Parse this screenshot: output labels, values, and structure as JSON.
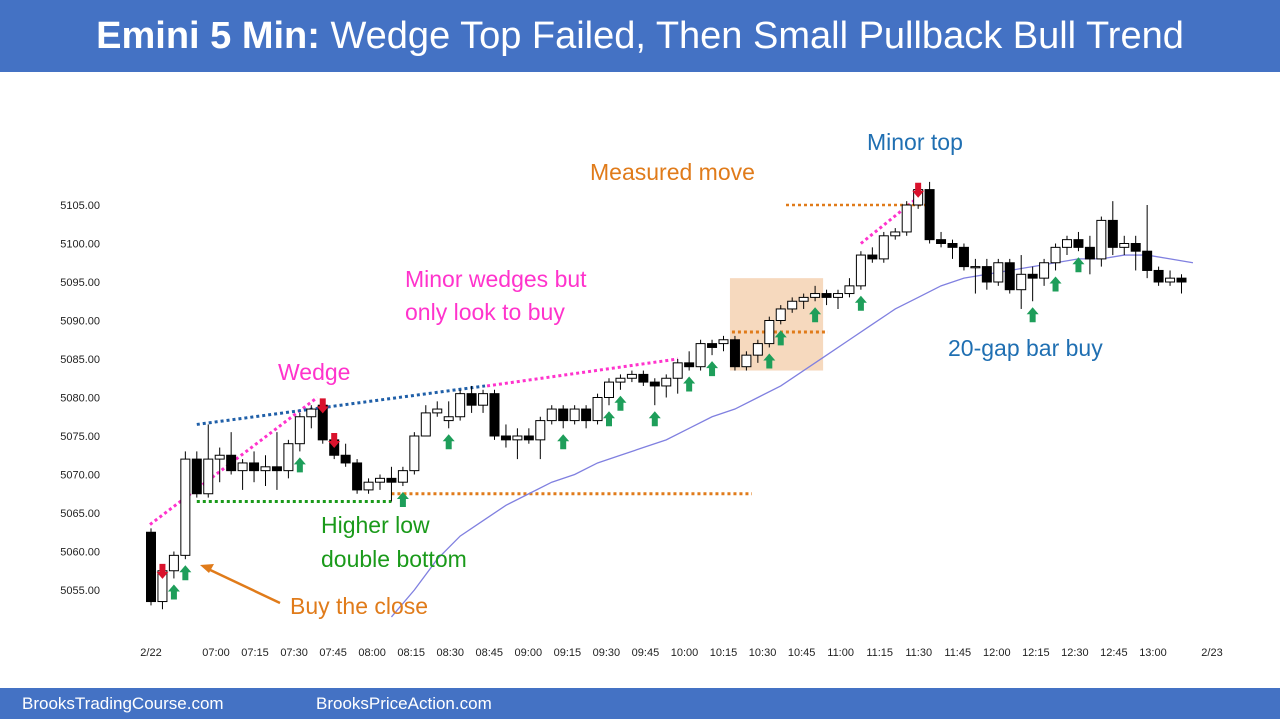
{
  "header": {
    "title_prefix": "Emini 5 Min:",
    "title_rest": "Wedge Top Failed, Then Small Pullback Bull Trend"
  },
  "footer": {
    "left": "BrooksTradingCourse.com",
    "right": "BrooksPriceAction.com"
  },
  "colors": {
    "banner": "#4472c4",
    "bull_body": "#ffffff",
    "bear_body": "#000000",
    "ema": "#8080e0",
    "buy_arrow": "#1e9e5a",
    "sell_arrow": "#d9122c",
    "magenta": "#ff33cc",
    "blue_text": "#1f6fb2",
    "orange": "#e07b1a",
    "green_text": "#1a9a1a",
    "box": "#f5d2b3"
  },
  "chart_data": {
    "type": "candlestick",
    "title": "",
    "ylim": [
      5051,
      5110
    ],
    "yticks": [
      "5055.00",
      "5060.00",
      "5065.00",
      "5070.00",
      "5075.00",
      "5080.00",
      "5085.00",
      "5090.00",
      "5095.00",
      "5100.00",
      "5105.00"
    ],
    "xticks": [
      "2/22",
      "07:00",
      "07:15",
      "07:30",
      "07:45",
      "08:00",
      "08:15",
      "08:30",
      "08:45",
      "09:00",
      "09:15",
      "09:30",
      "09:45",
      "10:00",
      "10:15",
      "10:30",
      "10:45",
      "11:00",
      "11:15",
      "11:30",
      "11:45",
      "12:00",
      "12:15",
      "12:30",
      "12:45",
      "13:00",
      "2/23"
    ],
    "bars": [
      {
        "o": 5062.5,
        "h": 5063,
        "l": 5053,
        "c": 5053.5
      },
      {
        "o": 5053.5,
        "h": 5058,
        "l": 5052.5,
        "c": 5057.5
      },
      {
        "o": 5057.5,
        "h": 5060,
        "l": 5056.5,
        "c": 5059.5
      },
      {
        "o": 5059.5,
        "h": 5073,
        "l": 5059,
        "c": 5072
      },
      {
        "o": 5072,
        "h": 5073,
        "l": 5067,
        "c": 5067.5
      },
      {
        "o": 5067.5,
        "h": 5076.5,
        "l": 5067,
        "c": 5072
      },
      {
        "o": 5072,
        "h": 5073.5,
        "l": 5069,
        "c": 5072.5
      },
      {
        "o": 5072.5,
        "h": 5075.5,
        "l": 5070,
        "c": 5070.5
      },
      {
        "o": 5070.5,
        "h": 5072,
        "l": 5068,
        "c": 5071.5
      },
      {
        "o": 5071.5,
        "h": 5073,
        "l": 5069,
        "c": 5070.5
      },
      {
        "o": 5070.5,
        "h": 5072.5,
        "l": 5068.5,
        "c": 5071
      },
      {
        "o": 5071,
        "h": 5075.5,
        "l": 5068,
        "c": 5070.5
      },
      {
        "o": 5070.5,
        "h": 5074.5,
        "l": 5069.5,
        "c": 5074
      },
      {
        "o": 5074,
        "h": 5078,
        "l": 5073,
        "c": 5077.5
      },
      {
        "o": 5077.5,
        "h": 5079,
        "l": 5076,
        "c": 5078.5
      },
      {
        "o": 5079,
        "h": 5079.5,
        "l": 5074,
        "c": 5074.5
      },
      {
        "o": 5074.5,
        "h": 5075,
        "l": 5072,
        "c": 5072.5
      },
      {
        "o": 5072.5,
        "h": 5074,
        "l": 5071,
        "c": 5071.5
      },
      {
        "o": 5071.5,
        "h": 5072,
        "l": 5067.5,
        "c": 5068
      },
      {
        "o": 5068,
        "h": 5069.5,
        "l": 5067.5,
        "c": 5069
      },
      {
        "o": 5069,
        "h": 5070,
        "l": 5068,
        "c": 5069.5
      },
      {
        "o": 5069.5,
        "h": 5071,
        "l": 5066.5,
        "c": 5069
      },
      {
        "o": 5069,
        "h": 5071,
        "l": 5068.5,
        "c": 5070.5
      },
      {
        "o": 5070.5,
        "h": 5075.5,
        "l": 5070,
        "c": 5075
      },
      {
        "o": 5075,
        "h": 5079,
        "l": 5075,
        "c": 5078
      },
      {
        "o": 5078,
        "h": 5079.5,
        "l": 5077.5,
        "c": 5078.5
      },
      {
        "o": 5077,
        "h": 5079.5,
        "l": 5076,
        "c": 5077.5
      },
      {
        "o": 5077.5,
        "h": 5081,
        "l": 5077,
        "c": 5080.5
      },
      {
        "o": 5080.5,
        "h": 5081.5,
        "l": 5078,
        "c": 5079
      },
      {
        "o": 5079,
        "h": 5081,
        "l": 5078,
        "c": 5080.5
      },
      {
        "o": 5080.5,
        "h": 5081,
        "l": 5074.5,
        "c": 5075
      },
      {
        "o": 5075,
        "h": 5076.5,
        "l": 5073.5,
        "c": 5074.5
      },
      {
        "o": 5074.5,
        "h": 5076,
        "l": 5072,
        "c": 5075
      },
      {
        "o": 5075,
        "h": 5076,
        "l": 5074,
        "c": 5074.5
      },
      {
        "o": 5074.5,
        "h": 5077.5,
        "l": 5072,
        "c": 5077
      },
      {
        "o": 5077,
        "h": 5079,
        "l": 5076.5,
        "c": 5078.5
      },
      {
        "o": 5078.5,
        "h": 5079,
        "l": 5076,
        "c": 5077
      },
      {
        "o": 5077,
        "h": 5079,
        "l": 5076.5,
        "c": 5078.5
      },
      {
        "o": 5078.5,
        "h": 5079,
        "l": 5076,
        "c": 5077
      },
      {
        "o": 5077,
        "h": 5080.5,
        "l": 5076.5,
        "c": 5080
      },
      {
        "o": 5080,
        "h": 5082.5,
        "l": 5079,
        "c": 5082
      },
      {
        "o": 5082,
        "h": 5083,
        "l": 5081,
        "c": 5082.5
      },
      {
        "o": 5082.5,
        "h": 5083.5,
        "l": 5082,
        "c": 5083
      },
      {
        "o": 5083,
        "h": 5083.5,
        "l": 5081.5,
        "c": 5082
      },
      {
        "o": 5082,
        "h": 5082.5,
        "l": 5079,
        "c": 5081.5
      },
      {
        "o": 5081.5,
        "h": 5083,
        "l": 5080,
        "c": 5082.5
      },
      {
        "o": 5082.5,
        "h": 5085,
        "l": 5080.5,
        "c": 5084.5
      },
      {
        "o": 5084.5,
        "h": 5086,
        "l": 5083.5,
        "c": 5084
      },
      {
        "o": 5084,
        "h": 5087.5,
        "l": 5083.5,
        "c": 5087
      },
      {
        "o": 5087,
        "h": 5087.5,
        "l": 5085.5,
        "c": 5086.5
      },
      {
        "o": 5087,
        "h": 5088,
        "l": 5086,
        "c": 5087.5
      },
      {
        "o": 5087.5,
        "h": 5088,
        "l": 5083.5,
        "c": 5084
      },
      {
        "o": 5084,
        "h": 5086,
        "l": 5083.5,
        "c": 5085.5
      },
      {
        "o": 5085.5,
        "h": 5087.5,
        "l": 5084.5,
        "c": 5087
      },
      {
        "o": 5087,
        "h": 5090.5,
        "l": 5086.5,
        "c": 5090
      },
      {
        "o": 5090,
        "h": 5092,
        "l": 5089.5,
        "c": 5091.5
      },
      {
        "o": 5091.5,
        "h": 5093,
        "l": 5091,
        "c": 5092.5
      },
      {
        "o": 5092.5,
        "h": 5093.5,
        "l": 5091.5,
        "c": 5093
      },
      {
        "o": 5093,
        "h": 5094.5,
        "l": 5092.5,
        "c": 5093.5
      },
      {
        "o": 5093.5,
        "h": 5094,
        "l": 5092,
        "c": 5093
      },
      {
        "o": 5093,
        "h": 5094,
        "l": 5091.5,
        "c": 5093.5
      },
      {
        "o": 5093.5,
        "h": 5095.5,
        "l": 5093,
        "c": 5094.5
      },
      {
        "o": 5094.5,
        "h": 5099,
        "l": 5094,
        "c": 5098.5
      },
      {
        "o": 5098.5,
        "h": 5099.5,
        "l": 5097.5,
        "c": 5098
      },
      {
        "o": 5098,
        "h": 5101.5,
        "l": 5097.5,
        "c": 5101
      },
      {
        "o": 5101,
        "h": 5102,
        "l": 5100.5,
        "c": 5101.5
      },
      {
        "o": 5101.5,
        "h": 5105.5,
        "l": 5101,
        "c": 5105
      },
      {
        "o": 5105,
        "h": 5107.5,
        "l": 5104.5,
        "c": 5107
      },
      {
        "o": 5107,
        "h": 5108,
        "l": 5100,
        "c": 5100.5
      },
      {
        "o": 5100.5,
        "h": 5101.5,
        "l": 5099.5,
        "c": 5100
      },
      {
        "o": 5100,
        "h": 5100.5,
        "l": 5098,
        "c": 5099.5
      },
      {
        "o": 5099.5,
        "h": 5100,
        "l": 5096.5,
        "c": 5097
      },
      {
        "o": 5097,
        "h": 5098,
        "l": 5093.5,
        "c": 5097
      },
      {
        "o": 5097,
        "h": 5098,
        "l": 5094,
        "c": 5095
      },
      {
        "o": 5095,
        "h": 5098,
        "l": 5094.5,
        "c": 5097.5
      },
      {
        "o": 5097.5,
        "h": 5098,
        "l": 5093.5,
        "c": 5094
      },
      {
        "o": 5094,
        "h": 5098.5,
        "l": 5091.5,
        "c": 5096
      },
      {
        "o": 5096,
        "h": 5097,
        "l": 5092.5,
        "c": 5095.5
      },
      {
        "o": 5095.5,
        "h": 5098,
        "l": 5094.5,
        "c": 5097.5
      },
      {
        "o": 5097.5,
        "h": 5100,
        "l": 5096.5,
        "c": 5099.5
      },
      {
        "o": 5099.5,
        "h": 5101,
        "l": 5098.5,
        "c": 5100.5
      },
      {
        "o": 5100.5,
        "h": 5101.5,
        "l": 5099,
        "c": 5099.5
      },
      {
        "o": 5099.5,
        "h": 5101,
        "l": 5096,
        "c": 5098
      },
      {
        "o": 5098,
        "h": 5103.5,
        "l": 5097,
        "c": 5103
      },
      {
        "o": 5103,
        "h": 5105.5,
        "l": 5098.5,
        "c": 5099.5
      },
      {
        "o": 5099.5,
        "h": 5101,
        "l": 5098.5,
        "c": 5100
      },
      {
        "o": 5100,
        "h": 5101,
        "l": 5096.5,
        "c": 5099
      },
      {
        "o": 5099,
        "h": 5105,
        "l": 5095.5,
        "c": 5096.5
      },
      {
        "o": 5096.5,
        "h": 5097,
        "l": 5094.5,
        "c": 5095
      },
      {
        "o": 5095,
        "h": 5096.5,
        "l": 5094.5,
        "c": 5095.5
      },
      {
        "o": 5095.5,
        "h": 5096,
        "l": 5093.5,
        "c": 5095
      }
    ],
    "ema20": [
      [
        21,
        5051.5
      ],
      [
        23,
        5055
      ],
      [
        25,
        5059
      ],
      [
        27,
        5062
      ],
      [
        29,
        5064
      ],
      [
        31,
        5066
      ],
      [
        33,
        5067.5
      ],
      [
        35,
        5069
      ],
      [
        37,
        5070
      ],
      [
        39,
        5071.5
      ],
      [
        41,
        5072.5
      ],
      [
        43,
        5073.5
      ],
      [
        45,
        5074.5
      ],
      [
        47,
        5076
      ],
      [
        49,
        5077.5
      ],
      [
        51,
        5078.5
      ],
      [
        53,
        5080
      ],
      [
        55,
        5081.5
      ],
      [
        57,
        5083.5
      ],
      [
        59,
        5085.5
      ],
      [
        61,
        5087.5
      ],
      [
        63,
        5089.5
      ],
      [
        65,
        5091.5
      ],
      [
        67,
        5093
      ],
      [
        69,
        5094.5
      ],
      [
        71,
        5095.5
      ],
      [
        73,
        5096
      ],
      [
        75,
        5096.5
      ],
      [
        77,
        5097
      ],
      [
        79,
        5097.5
      ],
      [
        81,
        5098
      ],
      [
        83,
        5098
      ],
      [
        85,
        5098.5
      ],
      [
        87,
        5098.5
      ],
      [
        89,
        5098
      ],
      [
        91,
        5097.5
      ]
    ],
    "buy_arrows": [
      2,
      3,
      13,
      22,
      26,
      36,
      40,
      41,
      44,
      47,
      49,
      54,
      55,
      58,
      62,
      77,
      79,
      81
    ],
    "sell_arrows": [
      1,
      15,
      16,
      67
    ],
    "annotations": {
      "wedge": "Wedge",
      "minor_wedges_line1": "Minor wedges but",
      "minor_wedges_line2": "only look to buy",
      "measured_move": "Measured move",
      "minor_top": "Minor top",
      "gap_bar_buy": "20-gap bar buy",
      "higher_low_line1": "Higher low",
      "higher_low_line2": "double bottom",
      "buy_the_close": "Buy the close"
    }
  }
}
